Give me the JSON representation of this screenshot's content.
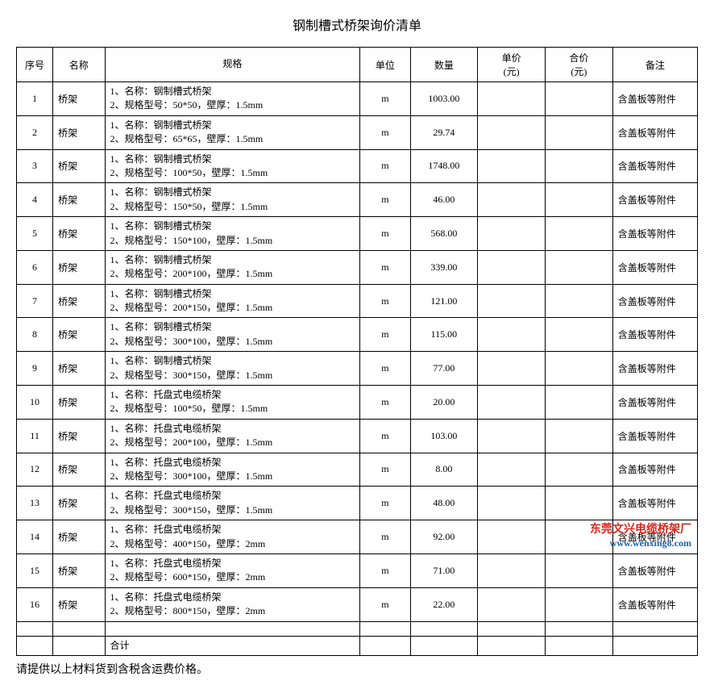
{
  "title": "钢制槽式桥架询价清单",
  "columns": {
    "seq": "序号",
    "name": "名称",
    "spec": "规格",
    "unit": "单位",
    "qty": "数量",
    "price": "单价\n(元)",
    "total": "合价\n(元)",
    "remark": "备注"
  },
  "rows": [
    {
      "seq": "1",
      "name": "桥架",
      "spec1": "1、名称：钢制槽式桥架",
      "spec2": "2、规格型号：50*50，壁厚：1.5mm",
      "unit": "m",
      "qty": "1003.00",
      "remark": "含盖板等附件"
    },
    {
      "seq": "2",
      "name": "桥架",
      "spec1": "1、名称：钢制槽式桥架",
      "spec2": "2、规格型号：65*65，壁厚：1.5mm",
      "unit": "m",
      "qty": "29.74",
      "remark": "含盖板等附件"
    },
    {
      "seq": "3",
      "name": "桥架",
      "spec1": "1、名称：钢制槽式桥架",
      "spec2": "2、规格型号：100*50，壁厚：1.5mm",
      "unit": "m",
      "qty": "1748.00",
      "remark": "含盖板等附件"
    },
    {
      "seq": "4",
      "name": "桥架",
      "spec1": "1、名称：钢制槽式桥架",
      "spec2": "2、规格型号：150*50，壁厚：1.5mm",
      "unit": "m",
      "qty": "46.00",
      "remark": "含盖板等附件"
    },
    {
      "seq": "5",
      "name": "桥架",
      "spec1": "1、名称：钢制槽式桥架",
      "spec2": "2、规格型号：150*100，壁厚：1.5mm",
      "unit": "m",
      "qty": "568.00",
      "remark": "含盖板等附件"
    },
    {
      "seq": "6",
      "name": "桥架",
      "spec1": "1、名称：钢制槽式桥架",
      "spec2": "2、规格型号：200*100，壁厚：1.5mm",
      "unit": "m",
      "qty": "339.00",
      "remark": "含盖板等附件"
    },
    {
      "seq": "7",
      "name": "桥架",
      "spec1": "1、名称：钢制槽式桥架",
      "spec2": "2、规格型号：200*150，壁厚：1.5mm",
      "unit": "m",
      "qty": "121.00",
      "remark": "含盖板等附件"
    },
    {
      "seq": "8",
      "name": "桥架",
      "spec1": "1、名称：钢制槽式桥架",
      "spec2": "2、规格型号：300*100，壁厚：1.5mm",
      "unit": "m",
      "qty": "115.00",
      "remark": "含盖板等附件"
    },
    {
      "seq": "9",
      "name": "桥架",
      "spec1": "1、名称：钢制槽式桥架",
      "spec2": "2、规格型号：300*150，壁厚：1.5mm",
      "unit": "m",
      "qty": "77.00",
      "remark": "含盖板等附件"
    },
    {
      "seq": "10",
      "name": "桥架",
      "spec1": "1、名称：托盘式电缆桥架",
      "spec2": "2、规格型号：100*50，壁厚：1.5mm",
      "unit": "m",
      "qty": "20.00",
      "remark": "含盖板等附件"
    },
    {
      "seq": "11",
      "name": "桥架",
      "spec1": "1、名称：托盘式电缆桥架",
      "spec2": "2、规格型号：200*100，壁厚：1.5mm",
      "unit": "m",
      "qty": "103.00",
      "remark": "含盖板等附件"
    },
    {
      "seq": "12",
      "name": "桥架",
      "spec1": "1、名称：托盘式电缆桥架",
      "spec2": "2、规格型号：300*100，壁厚：1.5mm",
      "unit": "m",
      "qty": "8.00",
      "remark": "含盖板等附件"
    },
    {
      "seq": "13",
      "name": "桥架",
      "spec1": "1、名称：托盘式电缆桥架",
      "spec2": "2、规格型号：300*150，壁厚：1.5mm",
      "unit": "m",
      "qty": "48.00",
      "remark": "含盖板等附件"
    },
    {
      "seq": "14",
      "name": "桥架",
      "spec1": "1、名称：托盘式电缆桥架",
      "spec2": "2、规格型号：400*150，壁厚：2mm",
      "unit": "m",
      "qty": "92.00",
      "remark": "含盖板等附件"
    },
    {
      "seq": "15",
      "name": "桥架",
      "spec1": "1、名称：托盘式电缆桥架",
      "spec2": "2、规格型号：600*150，壁厚：2mm",
      "unit": "m",
      "qty": "71.00",
      "remark": "含盖板等附件"
    },
    {
      "seq": "16",
      "name": "桥架",
      "spec1": "1、名称：托盘式电缆桥架",
      "spec2": "2、规格型号：800*150，壁厚：2mm",
      "unit": "m",
      "qty": "22.00",
      "remark": "含盖板等附件"
    }
  ],
  "total_label": "合计",
  "footer_note": "请提供以上材料货到含税含运费价格。",
  "watermark_text": "东莞文兴电缆桥架厂",
  "watermark_url": "www.wenxing8.com",
  "styles": {
    "border_color": "#000000",
    "background": "#ffffff",
    "text_color": "#000000",
    "watermark_red": "#d8261c",
    "watermark_blue": "#1a5fb4",
    "base_fontsize": 12,
    "title_fontsize": 16,
    "footer_fontsize": 14
  }
}
